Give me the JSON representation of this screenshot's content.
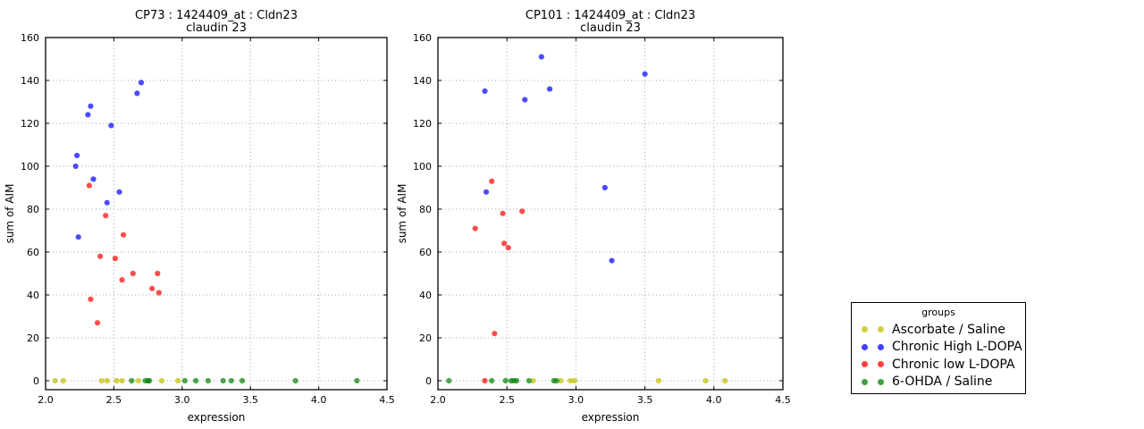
{
  "figure": {
    "background": "#ffffff",
    "marker_alpha": 0.7,
    "legend": {
      "title": "groups",
      "entries": [
        {
          "label": "Ascorbate / Saline",
          "color": "#bfbf00"
        },
        {
          "label": "Chronic High L-DOPA",
          "color": "#0000ff"
        },
        {
          "label": "Chronic low L-DOPA",
          "color": "#ff0000"
        },
        {
          "label": "6-OHDA / Saline",
          "color": "#008000"
        }
      ]
    }
  },
  "chart_data": [
    {
      "type": "scatter",
      "title": "CP73 : 1424409_at : Cldn23",
      "subtitle": "claudin 23",
      "xlabel": "expression",
      "ylabel": "sum of AIM",
      "xlim": [
        2.0,
        4.5
      ],
      "ylim": [
        0,
        160
      ],
      "xticks": [
        "2.0",
        "2.5",
        "3.0",
        "3.5",
        "4.0",
        "4.5"
      ],
      "yticks": [
        "0",
        "20",
        "40",
        "60",
        "80",
        "100",
        "120",
        "140",
        "160"
      ],
      "grid": true,
      "legend_position": "none",
      "series": [
        {
          "name": "Ascorbate / Saline",
          "color": "#bfbf00",
          "points": [
            [
              2.07,
              0
            ],
            [
              2.13,
              0
            ],
            [
              2.41,
              0
            ],
            [
              2.45,
              0
            ],
            [
              2.52,
              0
            ],
            [
              2.56,
              0
            ],
            [
              2.68,
              0
            ],
            [
              2.85,
              0
            ],
            [
              2.97,
              0
            ]
          ]
        },
        {
          "name": "Chronic High L-DOPA",
          "color": "#0000ff",
          "points": [
            [
              2.22,
              100
            ],
            [
              2.23,
              105
            ],
            [
              2.24,
              67
            ],
            [
              2.31,
              124
            ],
            [
              2.33,
              128
            ],
            [
              2.35,
              94
            ],
            [
              2.45,
              83
            ],
            [
              2.48,
              119
            ],
            [
              2.54,
              88
            ],
            [
              2.67,
              134
            ],
            [
              2.7,
              139
            ]
          ]
        },
        {
          "name": "Chronic low L-DOPA",
          "color": "#ff0000",
          "points": [
            [
              2.32,
              91
            ],
            [
              2.33,
              38
            ],
            [
              2.38,
              27
            ],
            [
              2.4,
              58
            ],
            [
              2.44,
              77
            ],
            [
              2.51,
              57
            ],
            [
              2.56,
              47
            ],
            [
              2.57,
              68
            ],
            [
              2.64,
              50
            ],
            [
              2.78,
              43
            ],
            [
              2.82,
              50
            ],
            [
              2.83,
              41
            ]
          ]
        },
        {
          "name": "6-OHDA / Saline",
          "color": "#008000",
          "points": [
            [
              2.63,
              0
            ],
            [
              2.73,
              0
            ],
            [
              2.75,
              0
            ],
            [
              2.76,
              0
            ],
            [
              3.02,
              0
            ],
            [
              3.1,
              0
            ],
            [
              3.19,
              0
            ],
            [
              3.3,
              0
            ],
            [
              3.36,
              0
            ],
            [
              3.44,
              0
            ],
            [
              3.83,
              0
            ],
            [
              4.28,
              0
            ]
          ]
        }
      ]
    },
    {
      "type": "scatter",
      "title": "CP101 : 1424409_at : Cldn23",
      "subtitle": "claudin 23",
      "xlabel": "expression",
      "ylabel": "sum of AIM",
      "xlim": [
        2.0,
        4.5
      ],
      "ylim": [
        0,
        160
      ],
      "xticks": [
        "2.0",
        "2.5",
        "3.0",
        "3.5",
        "4.0",
        "4.5"
      ],
      "yticks": [
        "0",
        "20",
        "40",
        "60",
        "80",
        "100",
        "120",
        "140",
        "160"
      ],
      "grid": true,
      "legend_position": "none",
      "series": [
        {
          "name": "Ascorbate / Saline",
          "color": "#bfbf00",
          "points": [
            [
              2.69,
              0
            ],
            [
              2.89,
              0
            ],
            [
              2.96,
              0
            ],
            [
              2.99,
              0
            ],
            [
              3.6,
              0
            ],
            [
              3.94,
              0
            ],
            [
              4.08,
              0
            ]
          ]
        },
        {
          "name": "Chronic High L-DOPA",
          "color": "#0000ff",
          "points": [
            [
              2.34,
              135
            ],
            [
              2.35,
              88
            ],
            [
              2.63,
              131
            ],
            [
              2.75,
              151
            ],
            [
              2.81,
              136
            ],
            [
              3.21,
              90
            ],
            [
              3.26,
              56
            ],
            [
              3.5,
              143
            ]
          ]
        },
        {
          "name": "Chronic low L-DOPA",
          "color": "#ff0000",
          "points": [
            [
              2.27,
              71
            ],
            [
              2.34,
              0
            ],
            [
              2.39,
              93
            ],
            [
              2.41,
              22
            ],
            [
              2.47,
              78
            ],
            [
              2.48,
              64
            ],
            [
              2.51,
              62
            ],
            [
              2.61,
              79
            ]
          ]
        },
        {
          "name": "6-OHDA / Saline",
          "color": "#008000",
          "points": [
            [
              2.08,
              0
            ],
            [
              2.39,
              0
            ],
            [
              2.49,
              0
            ],
            [
              2.53,
              0
            ],
            [
              2.55,
              0
            ],
            [
              2.57,
              0
            ],
            [
              2.66,
              0
            ],
            [
              2.84,
              0
            ],
            [
              2.86,
              0
            ]
          ]
        }
      ]
    }
  ]
}
